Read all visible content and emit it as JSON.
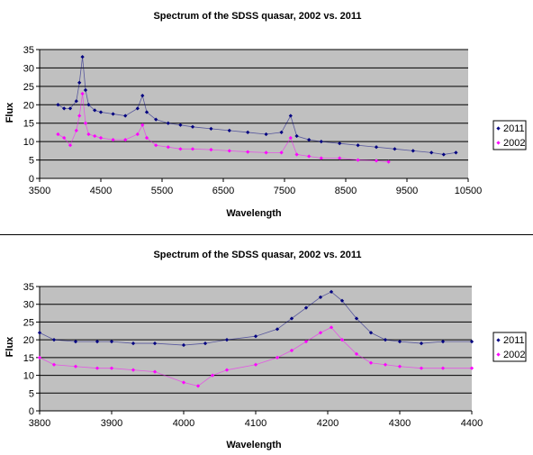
{
  "chart_data": [
    {
      "type": "scatter",
      "title": "Spectrum of the SDSS quasar, 2002 vs. 2011",
      "xlabel": "Wavelength",
      "ylabel": "Flux",
      "xlim": [
        3500,
        10500
      ],
      "ylim": [
        0,
        35
      ],
      "xticks": [
        "3500",
        "4500",
        "5500",
        "6500",
        "7500",
        "8500",
        "9500",
        "10500"
      ],
      "yticks": [
        "0",
        "5",
        "10",
        "15",
        "20",
        "25",
        "30",
        "35"
      ],
      "grid": "horizontal",
      "plot_background": "#c0c0c0",
      "legend_position": "right",
      "series": [
        {
          "name": "2011",
          "color": "#000080",
          "marker": "diamond",
          "x": [
            3800,
            3900,
            4000,
            4100,
            4150,
            4200,
            4250,
            4300,
            4400,
            4500,
            4700,
            4900,
            5100,
            5180,
            5250,
            5400,
            5600,
            5800,
            6000,
            6300,
            6600,
            6900,
            7200,
            7450,
            7600,
            7700,
            7900,
            8100,
            8400,
            8700,
            9000,
            9300,
            9600,
            9900,
            10100,
            10300
          ],
          "y": [
            20,
            19,
            19,
            21,
            26,
            33,
            24,
            20,
            18.5,
            18,
            17.5,
            17,
            19,
            22.5,
            18,
            16,
            15,
            14.5,
            14,
            13.5,
            13,
            12.5,
            12,
            12.5,
            17,
            11.5,
            10.5,
            10,
            9.5,
            9,
            8.5,
            8,
            7.5,
            7,
            6.5,
            7
          ]
        },
        {
          "name": "2002",
          "color": "#ff00ff",
          "marker": "diamond",
          "x": [
            3800,
            3900,
            4000,
            4100,
            4150,
            4200,
            4250,
            4300,
            4400,
            4500,
            4700,
            4900,
            5100,
            5180,
            5250,
            5400,
            5600,
            5800,
            6000,
            6300,
            6600,
            6900,
            7200,
            7450,
            7600,
            7700,
            7900,
            8100,
            8400,
            8700,
            9000,
            9200
          ],
          "y": [
            12,
            11,
            9,
            13,
            17,
            23,
            15,
            12,
            11.5,
            11,
            10.5,
            10.5,
            12,
            14.5,
            11,
            9,
            8.5,
            8,
            8,
            7.8,
            7.5,
            7.2,
            7,
            7,
            11,
            6.5,
            6,
            5.5,
            5.5,
            5,
            4.8,
            4.5
          ]
        }
      ]
    },
    {
      "type": "scatter",
      "title": "Spectrum of the SDSS quasar, 2002 vs. 2011",
      "xlabel": "Wavelength",
      "ylabel": "Flux",
      "xlim": [
        3800,
        4400
      ],
      "ylim": [
        0,
        35
      ],
      "xticks": [
        "3800",
        "3900",
        "4000",
        "4100",
        "4200",
        "4300",
        "4400"
      ],
      "yticks": [
        "0",
        "5",
        "10",
        "15",
        "20",
        "25",
        "30",
        "35"
      ],
      "grid": "horizontal",
      "plot_background": "#c0c0c0",
      "legend_position": "right",
      "series": [
        {
          "name": "2011",
          "color": "#000080",
          "marker": "diamond",
          "x": [
            3800,
            3820,
            3850,
            3880,
            3900,
            3930,
            3960,
            4000,
            4030,
            4060,
            4100,
            4130,
            4150,
            4170,
            4190,
            4205,
            4220,
            4240,
            4260,
            4280,
            4300,
            4330,
            4360,
            4400
          ],
          "y": [
            22,
            20,
            19.5,
            19.5,
            19.5,
            19,
            19,
            18.5,
            19,
            20,
            21,
            23,
            26,
            29,
            32,
            33.5,
            31,
            26,
            22,
            20,
            19.5,
            19,
            19.5,
            19.5
          ]
        },
        {
          "name": "2002",
          "color": "#ff00ff",
          "marker": "diamond",
          "x": [
            3800,
            3820,
            3850,
            3880,
            3900,
            3930,
            3960,
            4000,
            4020,
            4040,
            4060,
            4100,
            4130,
            4150,
            4170,
            4190,
            4205,
            4220,
            4240,
            4260,
            4280,
            4300,
            4330,
            4360,
            4400
          ],
          "y": [
            15,
            13,
            12.5,
            12,
            12,
            11.5,
            11,
            8,
            7,
            10,
            11.5,
            13,
            15,
            17,
            19.5,
            22,
            23.5,
            20,
            16,
            13.5,
            13,
            12.5,
            12,
            12,
            12
          ]
        }
      ]
    }
  ]
}
